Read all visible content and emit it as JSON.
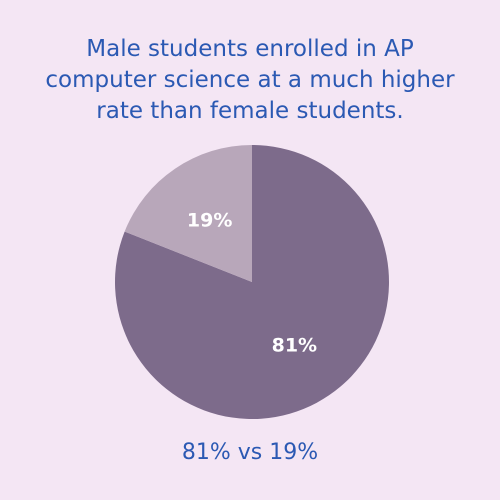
{
  "title_lines": [
    "Male students enrolled in AP",
    "computer science at a much higher",
    "rate than female students."
  ],
  "caption": "81% vs 19%",
  "colors": {
    "background": "#f4e6f4",
    "text": "#2b59b3",
    "slice_male": "#7d6b8b",
    "slice_female": "#b8a7ba",
    "slice_label": "#ffffff"
  },
  "chart_data": {
    "type": "pie",
    "title": "Male students enrolled in AP computer science at a much higher rate than female students.",
    "series": [
      {
        "values": [
          81,
          19
        ]
      }
    ],
    "slices": [
      {
        "value": 81,
        "label": "81%",
        "color": "#7d6b8b"
      },
      {
        "value": 19,
        "label": "19%",
        "color": "#b8a7ba"
      }
    ],
    "start": "12 o'clock",
    "direction": "clockwise",
    "legend": "none"
  }
}
